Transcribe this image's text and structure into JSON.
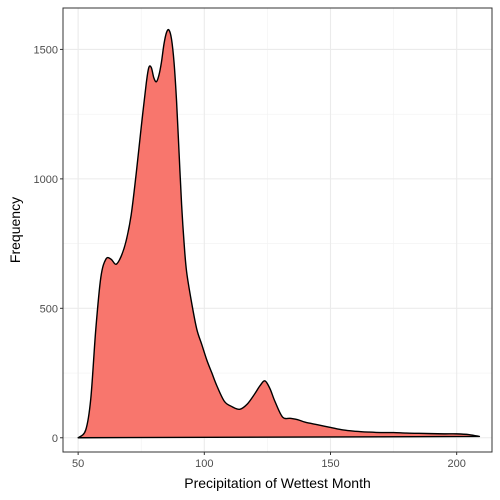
{
  "chart_data": {
    "type": "area",
    "title": "",
    "xlabel": "Precipitation of Wettest Month",
    "ylabel": "Frequency",
    "xlim": [
      44,
      214
    ],
    "ylim": [
      -55,
      1660
    ],
    "x_ticks": [
      50,
      100,
      150,
      200
    ],
    "y_ticks": [
      0,
      500,
      1000,
      1500
    ],
    "x_tick_labels": [
      "50",
      "100",
      "150",
      "200"
    ],
    "y_tick_labels": [
      "0",
      "500",
      "1000",
      "1500"
    ],
    "grid": true,
    "legend": "none",
    "fill_color": "#F8766D",
    "line_color": "#000000",
    "series": [
      {
        "x": [
          50,
          53,
          55,
          57,
          59,
          61,
          63,
          65,
          67,
          69,
          71,
          73,
          75,
          77,
          78,
          79,
          80,
          81,
          82,
          83,
          84,
          85,
          86,
          87,
          88,
          89,
          90,
          91,
          92,
          93,
          95,
          97,
          99,
          101,
          103,
          105,
          108,
          111,
          114,
          117,
          120,
          122,
          124,
          126,
          128,
          131,
          134,
          137,
          140,
          145,
          150,
          155,
          160,
          165,
          170,
          175,
          180,
          185,
          190,
          195,
          200,
          205,
          209
        ],
        "values": [
          0,
          30,
          150,
          420,
          620,
          690,
          690,
          670,
          700,
          760,
          860,
          1020,
          1200,
          1370,
          1430,
          1430,
          1390,
          1375,
          1400,
          1450,
          1520,
          1565,
          1575,
          1540,
          1450,
          1300,
          1100,
          900,
          750,
          640,
          520,
          420,
          360,
          300,
          250,
          200,
          140,
          120,
          110,
          130,
          170,
          200,
          220,
          190,
          140,
          80,
          75,
          70,
          60,
          50,
          40,
          30,
          25,
          22,
          20,
          20,
          18,
          17,
          16,
          15,
          15,
          12,
          5
        ]
      }
    ]
  }
}
